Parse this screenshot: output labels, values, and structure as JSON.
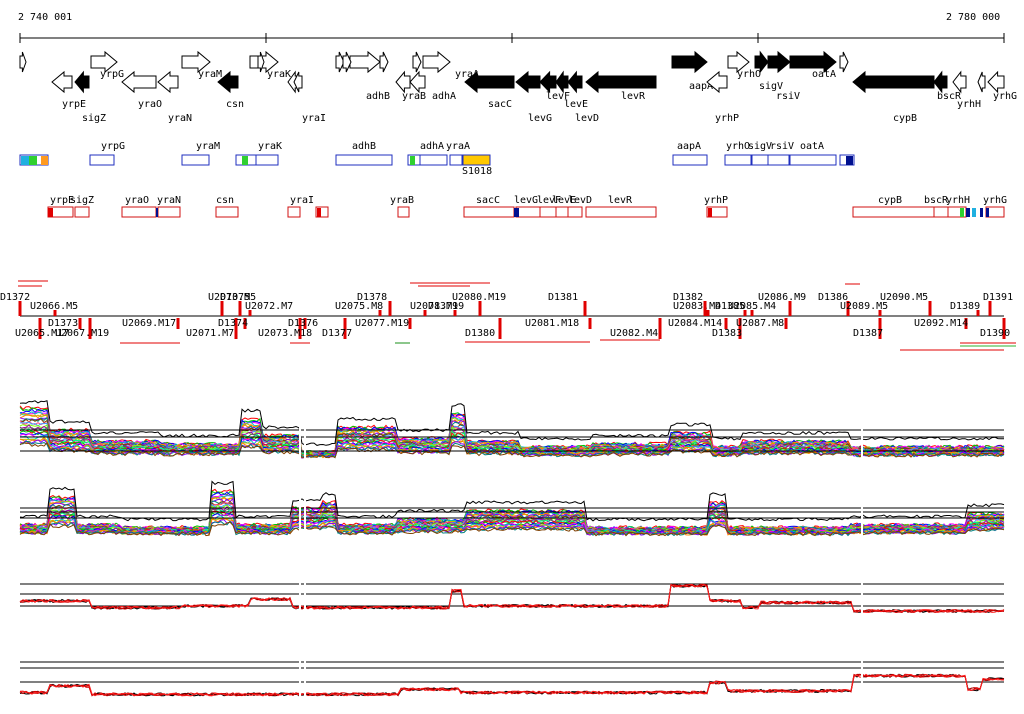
{
  "ruler": {
    "start_label": "2 740 001",
    "end_label": "2 780 000"
  },
  "colors": {
    "axis": "#000000",
    "gene_fill": "#000000",
    "box_blue": "#1f2fbf",
    "box_red": "#d01010",
    "probe_red": "#e00000",
    "bar_orange": "#ff9a1f",
    "bar_green": "#2fd02f",
    "bar_cyan": "#20b0e0",
    "bar_yellow": "#ffc800",
    "bar_navy": "#00108f"
  },
  "genes_forward": [
    {
      "name": "yrpG"
    },
    {
      "name": "yraM"
    },
    {
      "name": "yraK"
    },
    {
      "name": "adhB"
    },
    {
      "name": "yraA"
    },
    {
      "name": "aapA"
    },
    {
      "name": "yrhO"
    },
    {
      "name": "sigV"
    },
    {
      "name": "rsiV"
    },
    {
      "name": "oatA"
    }
  ],
  "genes_reverse": [
    {
      "name": "yrpE"
    },
    {
      "name": "sigZ"
    },
    {
      "name": "yraO"
    },
    {
      "name": "yraN"
    },
    {
      "name": "csn"
    },
    {
      "name": "yraI"
    },
    {
      "name": "yraB"
    },
    {
      "name": "adhA"
    },
    {
      "name": "sacC"
    },
    {
      "name": "levG"
    },
    {
      "name": "levF"
    },
    {
      "name": "levE"
    },
    {
      "name": "levD"
    },
    {
      "name": "levR"
    },
    {
      "name": "yrhP"
    },
    {
      "name": "cypB"
    },
    {
      "name": "bscR"
    },
    {
      "name": "yrhH"
    },
    {
      "name": "yrhG"
    }
  ],
  "tracks": {
    "forward_boxes": [
      {
        "label": "yrpG"
      },
      {
        "label": "yraM"
      },
      {
        "label": "yraK"
      },
      {
        "label": "adhB"
      },
      {
        "label": "adhA"
      },
      {
        "label": "yraA"
      },
      {
        "label": "S1018"
      },
      {
        "label": "aapA"
      },
      {
        "label": "yrhO"
      },
      {
        "label": "sigV"
      },
      {
        "label": "rsiV"
      },
      {
        "label": "oatA"
      }
    ],
    "reverse_boxes": [
      {
        "label": "yrpE"
      },
      {
        "label": "sigZ"
      },
      {
        "label": "yraO"
      },
      {
        "label": "yraN"
      },
      {
        "label": "csn"
      },
      {
        "label": "yraI"
      },
      {
        "label": "yraB"
      },
      {
        "label": "sacC"
      },
      {
        "label": "levG"
      },
      {
        "label": "levF"
      },
      {
        "label": "levE"
      },
      {
        "label": "levD"
      },
      {
        "label": "levR"
      },
      {
        "label": "yrhP"
      },
      {
        "label": "cypB"
      },
      {
        "label": "bscR"
      },
      {
        "label": "yrhH"
      },
      {
        "label": "yrhG"
      }
    ]
  },
  "segments_upper": [
    {
      "label": "D1372"
    },
    {
      "label": "U2066.M5"
    },
    {
      "label": "U2070.M5"
    },
    {
      "label": "U2072.M7"
    },
    {
      "label": "D1375"
    },
    {
      "label": "U2075.M8"
    },
    {
      "label": "D1378"
    },
    {
      "label": "U2078.M19"
    },
    {
      "label": "U2080.M19"
    },
    {
      "label": "D1379"
    },
    {
      "label": "D1381"
    },
    {
      "label": "U2083.M4"
    },
    {
      "label": "D1382"
    },
    {
      "label": "U2085.M4"
    },
    {
      "label": "U2086.M9"
    },
    {
      "label": "D1385"
    },
    {
      "label": "D1386"
    },
    {
      "label": "U2089.M5"
    },
    {
      "label": "U2090.M5"
    },
    {
      "label": "D1389"
    },
    {
      "label": "D1391"
    }
  ],
  "segments_lower": [
    {
      "label": "U2065.M17"
    },
    {
      "label": "D1373"
    },
    {
      "label": "U2067.M19"
    },
    {
      "label": "U2069.M17"
    },
    {
      "label": "U2071.M7"
    },
    {
      "label": "D1374"
    },
    {
      "label": "U2073.M18"
    },
    {
      "label": "D1376"
    },
    {
      "label": "D1377"
    },
    {
      "label": "U2077.M19"
    },
    {
      "label": "D1380"
    },
    {
      "label": "U2081.M18"
    },
    {
      "label": "U2082.M4"
    },
    {
      "label": "U2084.M14"
    },
    {
      "label": "D1383"
    },
    {
      "label": "U2087.M8"
    },
    {
      "label": "D1387"
    },
    {
      "label": "U2092.M14"
    },
    {
      "label": "D1390"
    }
  ],
  "expression_panels": [
    {
      "name": "all-conditions-forward"
    },
    {
      "name": "all-conditions-reverse"
    },
    {
      "name": "selected-conditions-forward"
    },
    {
      "name": "selected-conditions-reverse"
    }
  ]
}
